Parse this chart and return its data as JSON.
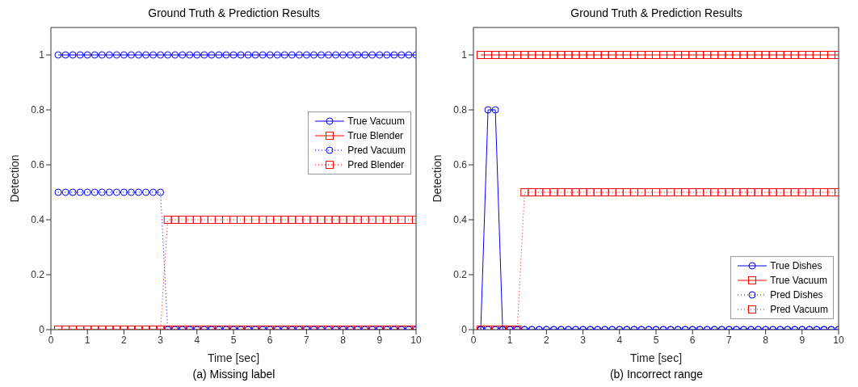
{
  "chart_data": [
    {
      "type": "line",
      "title": "Ground Truth & Prediction Results",
      "xlabel": "Time [sec]",
      "ylabel": "Detection",
      "annotations": [
        "(a) Missing label"
      ],
      "xlim": [
        0,
        10
      ],
      "xticks": [
        0,
        1,
        2,
        3,
        4,
        5,
        6,
        7,
        8,
        9,
        10
      ],
      "ylim": [
        0,
        1.1
      ],
      "yticks": [
        0,
        0.2,
        0.4,
        0.6,
        0.8,
        1
      ],
      "legend": "right",
      "x": [
        0.2,
        0.4,
        0.6,
        0.8,
        1,
        1.2,
        1.4,
        1.6,
        1.8,
        2,
        2.2,
        2.4,
        2.6,
        2.8,
        3,
        3.2,
        3.4,
        3.6,
        3.8,
        4,
        4.2,
        4.4,
        4.6,
        4.8,
        5,
        5.2,
        5.4,
        5.6,
        5.8,
        6,
        6.2,
        6.4,
        6.6,
        6.8,
        7,
        7.2,
        7.4,
        7.6,
        7.8,
        8,
        8.2,
        8.4,
        8.6,
        8.8,
        9,
        9.2,
        9.4,
        9.6,
        9.8,
        10
      ],
      "series": [
        {
          "name": "True Vacuum",
          "color": "#0000ff",
          "marker": "circle",
          "line_style": "solid",
          "values": [
            1,
            1,
            1,
            1,
            1,
            1,
            1,
            1,
            1,
            1,
            1,
            1,
            1,
            1,
            1,
            1,
            1,
            1,
            1,
            1,
            1,
            1,
            1,
            1,
            1,
            1,
            1,
            1,
            1,
            1,
            1,
            1,
            1,
            1,
            1,
            1,
            1,
            1,
            1,
            1,
            1,
            1,
            1,
            1,
            1,
            1,
            1,
            1,
            1,
            1
          ]
        },
        {
          "name": "True Blender",
          "color": "#ff0000",
          "marker": "square",
          "line_style": "solid",
          "values": [
            0,
            0,
            0,
            0,
            0,
            0,
            0,
            0,
            0,
            0,
            0,
            0,
            0,
            0,
            0,
            0,
            0,
            0,
            0,
            0,
            0,
            0,
            0,
            0,
            0,
            0,
            0,
            0,
            0,
            0,
            0,
            0,
            0,
            0,
            0,
            0,
            0,
            0,
            0,
            0,
            0,
            0,
            0,
            0,
            0,
            0,
            0,
            0,
            0,
            0
          ]
        },
        {
          "name": "Pred Vacuum",
          "color": "#0000ff",
          "marker": "circle",
          "line_style": "dotted",
          "values": [
            0.5,
            0.5,
            0.5,
            0.5,
            0.5,
            0.5,
            0.5,
            0.5,
            0.5,
            0.5,
            0.5,
            0.5,
            0.5,
            0.5,
            0.5,
            0,
            0,
            0,
            0,
            0,
            0,
            0,
            0,
            0,
            0,
            0,
            0,
            0,
            0,
            0,
            0,
            0,
            0,
            0,
            0,
            0,
            0,
            0,
            0,
            0,
            0,
            0,
            0,
            0,
            0,
            0,
            0,
            0,
            0,
            0
          ]
        },
        {
          "name": "Pred Blender",
          "color": "#ff0000",
          "marker": "square",
          "line_style": "dotted",
          "values": [
            0,
            0,
            0,
            0,
            0,
            0,
            0,
            0,
            0,
            0,
            0,
            0,
            0,
            0,
            0,
            0.4,
            0.4,
            0.4,
            0.4,
            0.4,
            0.4,
            0.4,
            0.4,
            0.4,
            0.4,
            0.4,
            0.4,
            0.4,
            0.4,
            0.4,
            0.4,
            0.4,
            0.4,
            0.4,
            0.4,
            0.4,
            0.4,
            0.4,
            0.4,
            0.4,
            0.4,
            0.4,
            0.4,
            0.4,
            0.4,
            0.4,
            0.4,
            0.4,
            0.4,
            0.4
          ]
        }
      ]
    },
    {
      "type": "line",
      "title": "Ground Truth & Prediction Results",
      "xlabel": "Time [sec]",
      "ylabel": "Detection",
      "annotations": [
        "(b) Incorrect range"
      ],
      "xlim": [
        0,
        10
      ],
      "xticks": [
        0,
        1,
        2,
        3,
        4,
        5,
        6,
        7,
        8,
        9,
        10
      ],
      "ylim": [
        0,
        1.1
      ],
      "yticks": [
        0,
        0.2,
        0.4,
        0.6,
        0.8,
        1
      ],
      "legend": "bottom right",
      "x": [
        0.2,
        0.4,
        0.6,
        0.8,
        1,
        1.2,
        1.4,
        1.6,
        1.8,
        2,
        2.2,
        2.4,
        2.6,
        2.8,
        3,
        3.2,
        3.4,
        3.6,
        3.8,
        4,
        4.2,
        4.4,
        4.6,
        4.8,
        5,
        5.2,
        5.4,
        5.6,
        5.8,
        6,
        6.2,
        6.4,
        6.6,
        6.8,
        7,
        7.2,
        7.4,
        7.6,
        7.8,
        8,
        8.2,
        8.4,
        8.6,
        8.8,
        9,
        9.2,
        9.4,
        9.6,
        9.8,
        10
      ],
      "series": [
        {
          "name": "True Dishes",
          "color": "#0000ff",
          "marker": "circle",
          "line_style": "solid",
          "values": [
            0,
            0.8,
            0.8,
            0,
            0,
            0,
            0,
            0,
            0,
            0,
            0,
            0,
            0,
            0,
            0,
            0,
            0,
            0,
            0,
            0,
            0,
            0,
            0,
            0,
            0,
            0,
            0,
            0,
            0,
            0,
            0,
            0,
            0,
            0,
            0,
            0,
            0,
            0,
            0,
            0,
            0,
            0,
            0,
            0,
            0,
            0,
            0,
            0,
            0,
            0
          ]
        },
        {
          "name": "True Vacuum",
          "color": "#ff0000",
          "marker": "square",
          "line_style": "solid",
          "values": [
            1,
            1,
            1,
            1,
            1,
            1,
            1,
            1,
            1,
            1,
            1,
            1,
            1,
            1,
            1,
            1,
            1,
            1,
            1,
            1,
            1,
            1,
            1,
            1,
            1,
            1,
            1,
            1,
            1,
            1,
            1,
            1,
            1,
            1,
            1,
            1,
            1,
            1,
            1,
            1,
            1,
            1,
            1,
            1,
            1,
            1,
            1,
            1,
            1,
            1
          ]
        },
        {
          "name": "Pred Dishes",
          "color": "#0000ff",
          "marker": "circle",
          "line_style": "dotted",
          "values": [
            0,
            0,
            0,
            0,
            0,
            0,
            0,
            0,
            0,
            0,
            0,
            0,
            0,
            0,
            0,
            0,
            0,
            0,
            0,
            0,
            0,
            0,
            0,
            0,
            0,
            0,
            0,
            0,
            0,
            0,
            0,
            0,
            0,
            0,
            0,
            0,
            0,
            0,
            0,
            0,
            0,
            0,
            0,
            0,
            0,
            0,
            0,
            0,
            0,
            0
          ]
        },
        {
          "name": "Pred Vacuum",
          "color": "#ff0000",
          "marker": "square",
          "line_style": "dotted",
          "values": [
            0,
            0,
            0,
            0,
            0,
            0,
            0.5,
            0.5,
            0.5,
            0.5,
            0.5,
            0.5,
            0.5,
            0.5,
            0.5,
            0.5,
            0.5,
            0.5,
            0.5,
            0.5,
            0.5,
            0.5,
            0.5,
            0.5,
            0.5,
            0.5,
            0.5,
            0.5,
            0.5,
            0.5,
            0.5,
            0.5,
            0.5,
            0.5,
            0.5,
            0.5,
            0.5,
            0.5,
            0.5,
            0.5,
            0.5,
            0.5,
            0.5,
            0.5,
            0.5,
            0.5,
            0.5,
            0.5,
            0.5,
            0.5
          ]
        }
      ]
    }
  ]
}
